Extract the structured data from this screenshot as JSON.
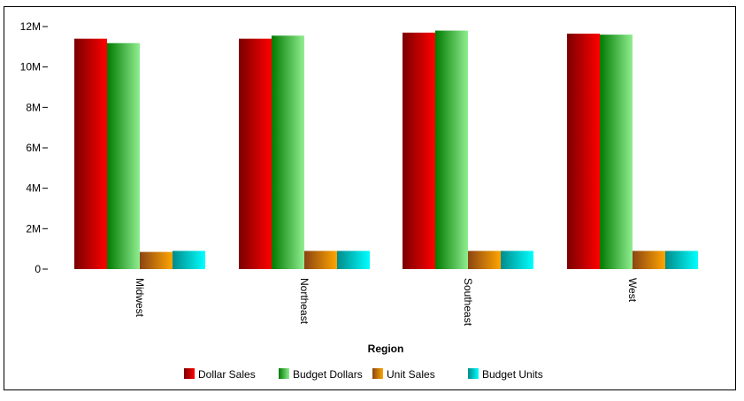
{
  "chart_data": {
    "type": "bar",
    "title": "",
    "xlabel": "Region",
    "ylabel": "",
    "ylim": [
      0,
      12000000
    ],
    "yticks": [
      0,
      2000000,
      4000000,
      6000000,
      8000000,
      10000000,
      12000000
    ],
    "ytick_labels": [
      "0",
      "2M",
      "4M",
      "6M",
      "8M",
      "10M",
      "12M"
    ],
    "categories": [
      "Midwest",
      "Northeast",
      "Southeast",
      "West"
    ],
    "series": [
      {
        "name": "Dollar Sales",
        "values": [
          11400000,
          11400000,
          11700000,
          11650000
        ]
      },
      {
        "name": "Budget Dollars",
        "values": [
          11180000,
          11550000,
          11800000,
          11600000
        ]
      },
      {
        "name": "Unit Sales",
        "values": [
          850000,
          900000,
          900000,
          900000
        ]
      },
      {
        "name": "Budget Units",
        "values": [
          900000,
          900000,
          900000,
          900000
        ]
      }
    ],
    "colors": [
      {
        "dark": "#7a0000",
        "light": "#ff0000"
      },
      {
        "dark": "#007a00",
        "light": "#90ee90"
      },
      {
        "dark": "#8b4513",
        "light": "#ffa500"
      },
      {
        "dark": "#008b8b",
        "light": "#00ffff"
      }
    ],
    "grid": false,
    "legend_position": "bottom"
  }
}
